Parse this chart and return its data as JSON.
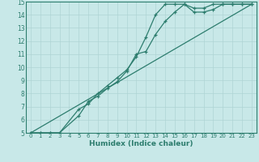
{
  "xlabel": "Humidex (Indice chaleur)",
  "ylabel": "",
  "bg_color": "#c8e8e8",
  "grid_color": "#afd4d4",
  "line_color": "#2d7d6e",
  "xlim": [
    -0.5,
    23.5
  ],
  "ylim": [
    5,
    15
  ],
  "xticks": [
    0,
    1,
    2,
    3,
    4,
    5,
    6,
    7,
    8,
    9,
    10,
    11,
    12,
    13,
    14,
    15,
    16,
    17,
    18,
    19,
    20,
    21,
    22,
    23
  ],
  "yticks": [
    5,
    6,
    7,
    8,
    9,
    10,
    11,
    12,
    13,
    14,
    15
  ],
  "line1_x": [
    0,
    1,
    2,
    3,
    5,
    6,
    7,
    8,
    9,
    10,
    11,
    12,
    13,
    14,
    15,
    16,
    17,
    18,
    19,
    20,
    21,
    22,
    23
  ],
  "line1_y": [
    5,
    5,
    5,
    5,
    6.8,
    7.2,
    8.0,
    8.6,
    9.2,
    9.8,
    10.8,
    12.3,
    14.0,
    14.8,
    14.8,
    14.8,
    14.5,
    14.5,
    14.8,
    14.8,
    14.8,
    14.8,
    14.8
  ],
  "line2_x": [
    0,
    1,
    2,
    3,
    5,
    6,
    7,
    8,
    9,
    10,
    11,
    12,
    13,
    14,
    15,
    16,
    17,
    18,
    19,
    20,
    21,
    22,
    23
  ],
  "line2_y": [
    5,
    5,
    5,
    5,
    6.3,
    7.4,
    7.8,
    8.4,
    8.9,
    9.7,
    11.0,
    11.2,
    12.5,
    13.5,
    14.2,
    14.8,
    14.2,
    14.2,
    14.4,
    14.8,
    14.8,
    14.8,
    14.8
  ],
  "line3_x": [
    0,
    23
  ],
  "line3_y": [
    5,
    14.8
  ]
}
